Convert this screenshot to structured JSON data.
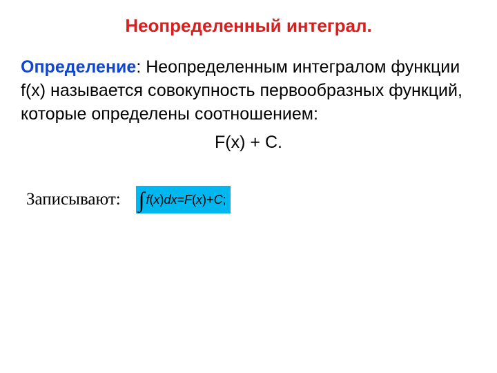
{
  "colors": {
    "title": "#d81f1f",
    "def_label": "#1147cc",
    "body_text": "#000000",
    "formula_bg": "#00b7ef",
    "formula_text": "#000000",
    "background": "#ffffff"
  },
  "title": "Неопределенный интеграл.",
  "definition": {
    "label": "Определение",
    "text": ": Неопределенным интегралом функции f(x) называется совокупность первообразных функций, которые определены соотношением:"
  },
  "center_formula": "F(x) + C.",
  "notation": {
    "label": "Записывают:",
    "formula": {
      "lhs_func": "f",
      "lhs_open": "(",
      "lhs_var": "x",
      "lhs_close": ")",
      "lhs_dx": "dx",
      "eq": " = ",
      "rhs_func": "F",
      "rhs_open": "(",
      "rhs_var": "x",
      "rhs_close": ")",
      "plus": " + ",
      "const": "C",
      "end": ";"
    }
  }
}
